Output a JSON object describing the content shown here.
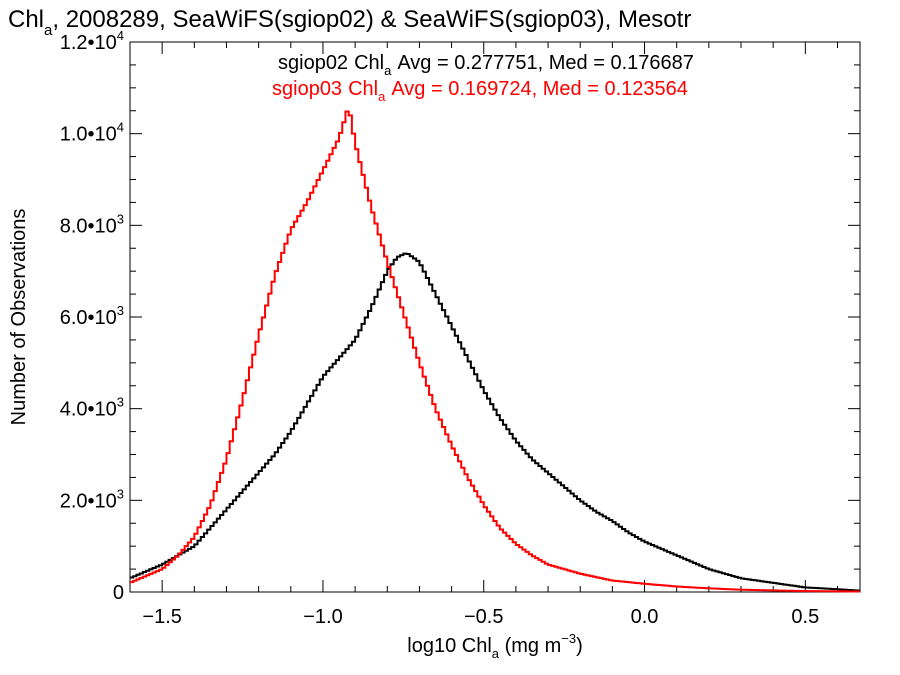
{
  "chart_data": {
    "type": "line",
    "title": {
      "prefix": "Chl",
      "sub": "a",
      "rest": ", 2008289, SeaWiFS(sgiop02) & SeaWiFS(sgiop03), Mesotr"
    },
    "xlabel": {
      "prefix": "log10 Chl",
      "sub": "a",
      "mid": " (mg m",
      "sup": "−3",
      "suffix": ")"
    },
    "ylabel": "Number of Observations",
    "xlim": [
      -1.6,
      0.67
    ],
    "ylim": [
      0,
      12000
    ],
    "x_ticks": [
      {
        "value": -1.5,
        "label": "−1.5"
      },
      {
        "value": -1.0,
        "label": "−1.0"
      },
      {
        "value": -0.5,
        "label": "−0.5"
      },
      {
        "value": 0.0,
        "label": "0.0"
      },
      {
        "value": 0.5,
        "label": "0.5"
      }
    ],
    "y_ticks": [
      {
        "value": 0,
        "mantissa": "0",
        "exp": ""
      },
      {
        "value": 2000,
        "mantissa": "2.0•10",
        "exp": "3"
      },
      {
        "value": 4000,
        "mantissa": "4.0•10",
        "exp": "3"
      },
      {
        "value": 6000,
        "mantissa": "6.0•10",
        "exp": "3"
      },
      {
        "value": 8000,
        "mantissa": "8.0•10",
        "exp": "3"
      },
      {
        "value": 10000,
        "mantissa": "1.0•10",
        "exp": "4"
      },
      {
        "value": 12000,
        "mantissa": "1.2•10",
        "exp": "4"
      }
    ],
    "grid": false,
    "legend_position": "top-center",
    "series": [
      {
        "name": "sgiop02",
        "color": "#000000",
        "stats": {
          "avg_label": "Avg = 0.277751",
          "med_label": "Med = 0.176687"
        },
        "x": [
          -1.6,
          -1.5,
          -1.4,
          -1.35,
          -1.3,
          -1.25,
          -1.2,
          -1.15,
          -1.1,
          -1.05,
          -1.0,
          -0.95,
          -0.9,
          -0.85,
          -0.8,
          -0.77,
          -0.74,
          -0.7,
          -0.65,
          -0.6,
          -0.55,
          -0.5,
          -0.45,
          -0.4,
          -0.35,
          -0.3,
          -0.25,
          -0.2,
          -0.15,
          -0.1,
          -0.05,
          0.0,
          0.1,
          0.2,
          0.3,
          0.4,
          0.5,
          0.6,
          0.67
        ],
        "y": [
          300,
          600,
          1000,
          1400,
          1800,
          2200,
          2600,
          3000,
          3500,
          4100,
          4700,
          5100,
          5500,
          6200,
          7000,
          7300,
          7400,
          7200,
          6500,
          5800,
          5100,
          4400,
          3800,
          3300,
          2900,
          2600,
          2300,
          2000,
          1750,
          1550,
          1300,
          1100,
          800,
          500,
          300,
          200,
          100,
          60,
          30
        ]
      },
      {
        "name": "sgiop03",
        "color": "#ff0000",
        "stats": {
          "avg_label": "Avg = 0.169724",
          "med_label": "Med = 0.123564"
        },
        "x": [
          -1.6,
          -1.5,
          -1.45,
          -1.4,
          -1.35,
          -1.3,
          -1.25,
          -1.2,
          -1.15,
          -1.1,
          -1.05,
          -1.0,
          -0.95,
          -0.92,
          -0.9,
          -0.85,
          -0.8,
          -0.75,
          -0.7,
          -0.65,
          -0.6,
          -0.55,
          -0.5,
          -0.45,
          -0.4,
          -0.35,
          -0.3,
          -0.2,
          -0.1,
          0.0,
          0.1,
          0.2,
          0.3,
          0.5,
          0.67
        ],
        "y": [
          200,
          500,
          800,
          1200,
          1900,
          2900,
          4200,
          5600,
          6900,
          7900,
          8500,
          9200,
          9900,
          10600,
          9800,
          8400,
          7200,
          6100,
          5000,
          4000,
          3200,
          2500,
          1900,
          1400,
          1050,
          800,
          600,
          400,
          250,
          180,
          120,
          80,
          50,
          20,
          10
        ]
      }
    ]
  }
}
